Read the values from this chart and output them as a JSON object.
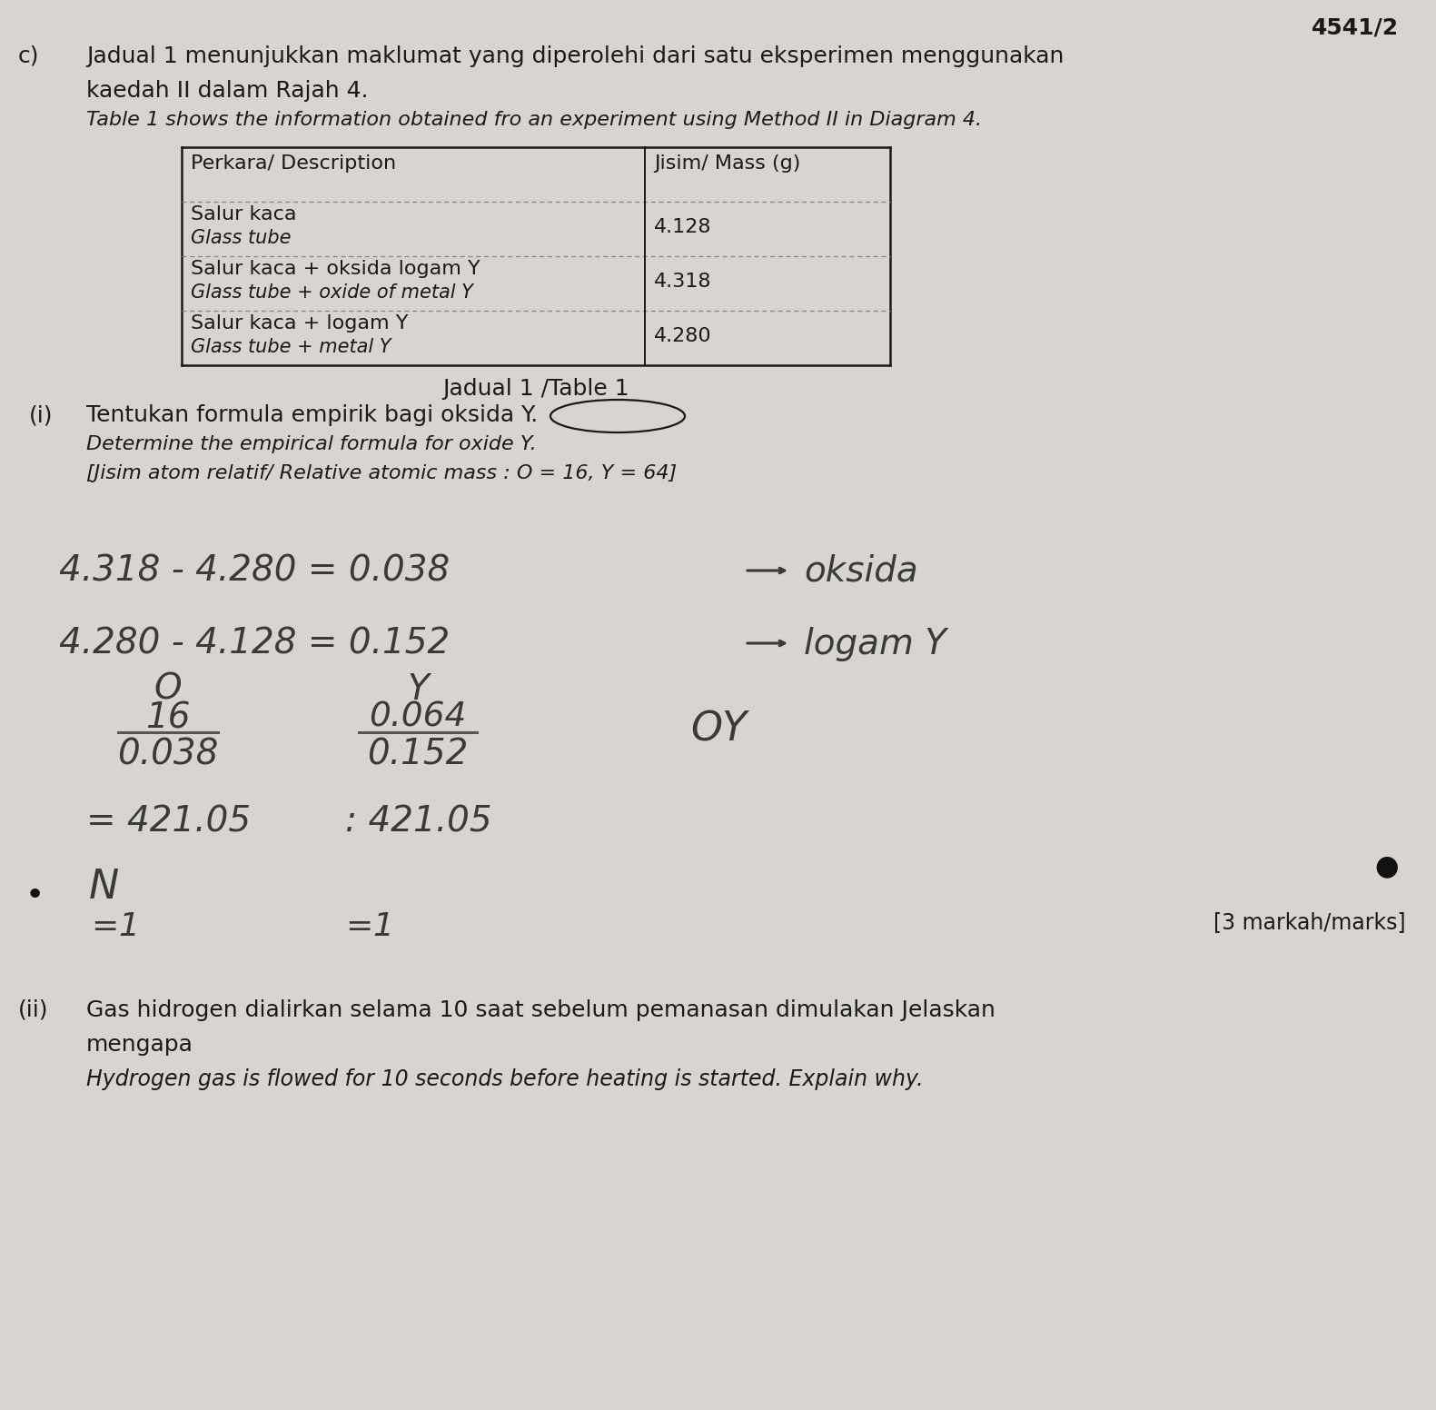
{
  "bg_color": "#d8d4d0",
  "page_number": "4541/2",
  "section_c_label": "c)",
  "malay_intro1": "Jadual 1 menunjukkan maklumat yang diperolehi dari satu eksperimen menggunakan",
  "malay_intro2": "kaedah II dalam Rajah 4.",
  "english_intro": "Table 1 shows the information obtained fro an experiment using Method II in Diagram 4.",
  "table_col1_header": "Perkara/ Description",
  "table_col2_header": "Jisim/ Mass (g)",
  "table_row1_col1a": "Salur kaca",
  "table_row1_col1b": "Glass tube",
  "table_row1_col2": "4.128",
  "table_row2_col1a": "Salur kaca + oksida logam Y",
  "table_row2_col1b": "Glass tube + oxide of metal Y",
  "table_row2_col2": "4.318",
  "table_row3_col1a": "Salur kaca + logam Y",
  "table_row3_col1b": "Glass tube + metal Y",
  "table_row3_col2": "4.280",
  "table_caption": "Jadual 1 /Table 1",
  "part_i_label": "(i)",
  "part_i_malay": "Tentukan formula empirik bagi oksida Y.",
  "part_i_english": "Determine the empirical formula for oxide Y.",
  "part_i_hint": "[Jisim atom relatif/ Relative atomic mass : O = 16, Y = 64]",
  "calc1_left": "4.318 - 4.280 = 0.038",
  "calc1_right": "oksida",
  "calc2_left": "4.280 - 4.128 = 0.152",
  "calc2_right": "logam Y",
  "frac_O_top_label": "O",
  "frac_O_num": "16",
  "frac_O_denom": "0.038",
  "frac_Y_top_label": "Y",
  "frac_Y_num": "0.064",
  "frac_Y_denom": "0.152",
  "frac_result_label": "OY",
  "result1": "= 421.05",
  "result2": ": 421.05",
  "bullet_char": "•",
  "ratio_N": "N",
  "ratio_eq1": "=",
  "ratio_val1": "1",
  "ratio_eq2": "=",
  "ratio_val2": "1",
  "marks_label": "[3 markah/marks]",
  "part_ii_label": "(ii)",
  "part_ii_malay1": "Gas hidrogen dialirkan selama 10 saat sebelum pemanasan dimulakan Jelaskan",
  "part_ii_malay2": "mengapa",
  "part_ii_english": "Hydrogen gas is flowed for 10 seconds before heating is started. Explain why."
}
